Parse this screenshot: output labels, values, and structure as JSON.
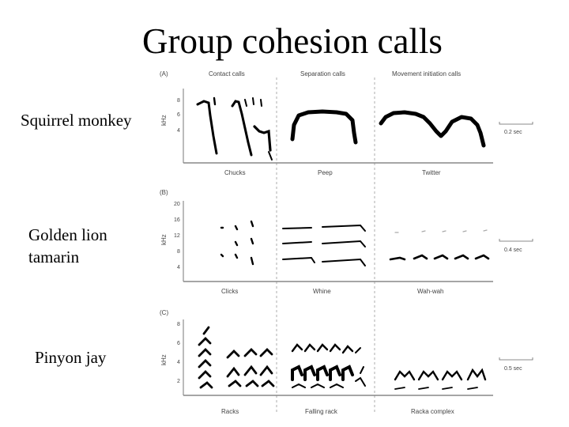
{
  "slide": {
    "title": "Group cohesion calls",
    "species": [
      "Squirrel monkey",
      "Golden lion tamarin",
      "Pinyon jay"
    ]
  },
  "figure": {
    "panels": [
      {
        "tag": "(A)",
        "column_headers": [
          "Contact calls",
          "Separation calls",
          "Movement initiation calls"
        ],
        "y_axis_label": "kHz",
        "y_ticks": [
          "8",
          "6",
          "4"
        ],
        "call_labels": [
          "Chucks",
          "Peep",
          "Twitter"
        ],
        "scale_bar": "0.2 sec"
      },
      {
        "tag": "(B)",
        "y_axis_label": "kHz",
        "y_ticks": [
          "20",
          "16",
          "12",
          "8",
          "4"
        ],
        "call_labels": [
          "Clicks",
          "Whine",
          "Wah-wah"
        ],
        "scale_bar": "0.4 sec"
      },
      {
        "tag": "(C)",
        "y_axis_label": "kHz",
        "y_ticks": [
          "8",
          "6",
          "4",
          "2"
        ],
        "call_labels": [
          "Racks",
          "Falling rack",
          "Racka complex"
        ],
        "scale_bar": "0.5 sec"
      }
    ]
  }
}
